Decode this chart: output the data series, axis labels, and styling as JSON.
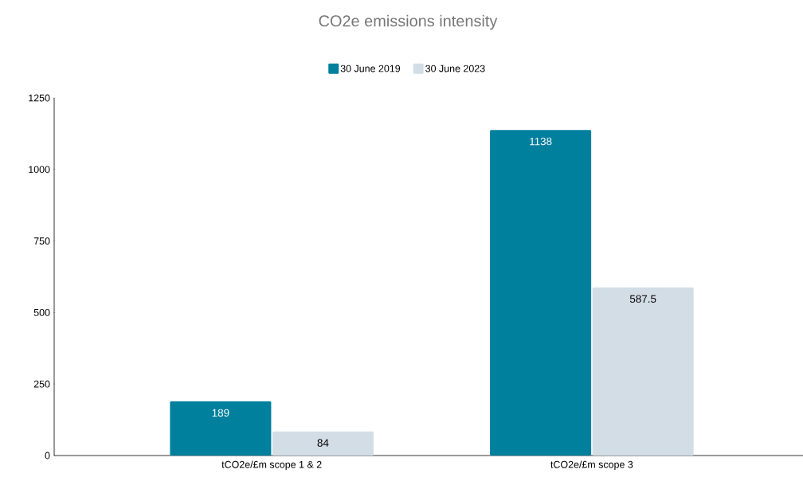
{
  "chart_data": {
    "type": "bar",
    "title": "CO2e emissions intensity",
    "categories": [
      "tCO2e/£m scope 1 & 2",
      "tCO2e/£m scope 3"
    ],
    "series": [
      {
        "name": "30 June 2019",
        "color": "#00809d",
        "values": [
          189,
          1138
        ]
      },
      {
        "name": "30 June 2023",
        "color": "#d3dde6",
        "values": [
          84,
          587.5
        ]
      }
    ],
    "ylim": [
      0,
      1250
    ],
    "yticks": [
      0,
      250,
      500,
      750,
      1000,
      1250
    ],
    "data_labels": true,
    "legend": "top",
    "grid": false
  }
}
